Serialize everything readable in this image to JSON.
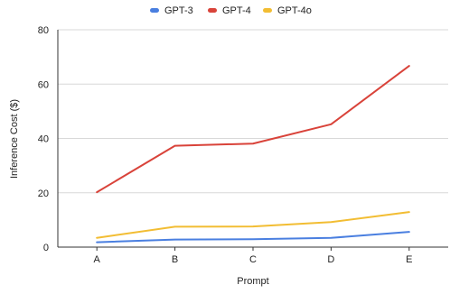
{
  "chart_data": {
    "type": "line",
    "xlabel": "Prompt",
    "ylabel": "Inference Cost ($)",
    "categories": [
      "A",
      "B",
      "C",
      "D",
      "E"
    ],
    "ylim": [
      0,
      80
    ],
    "yticks": [
      0,
      20,
      40,
      60,
      80
    ],
    "grid": true,
    "legend_position": "top",
    "series": [
      {
        "name": "GPT-3",
        "color": "#4a7fe0",
        "values": [
          1.8,
          2.8,
          2.9,
          3.4,
          5.6
        ]
      },
      {
        "name": "GPT-4",
        "color": "#d9433a",
        "values": [
          20.2,
          37.3,
          38.1,
          45.2,
          66.7
        ]
      },
      {
        "name": "GPT-4o",
        "color": "#f2bd33",
        "values": [
          3.4,
          7.5,
          7.6,
          9.2,
          12.9
        ]
      }
    ]
  }
}
